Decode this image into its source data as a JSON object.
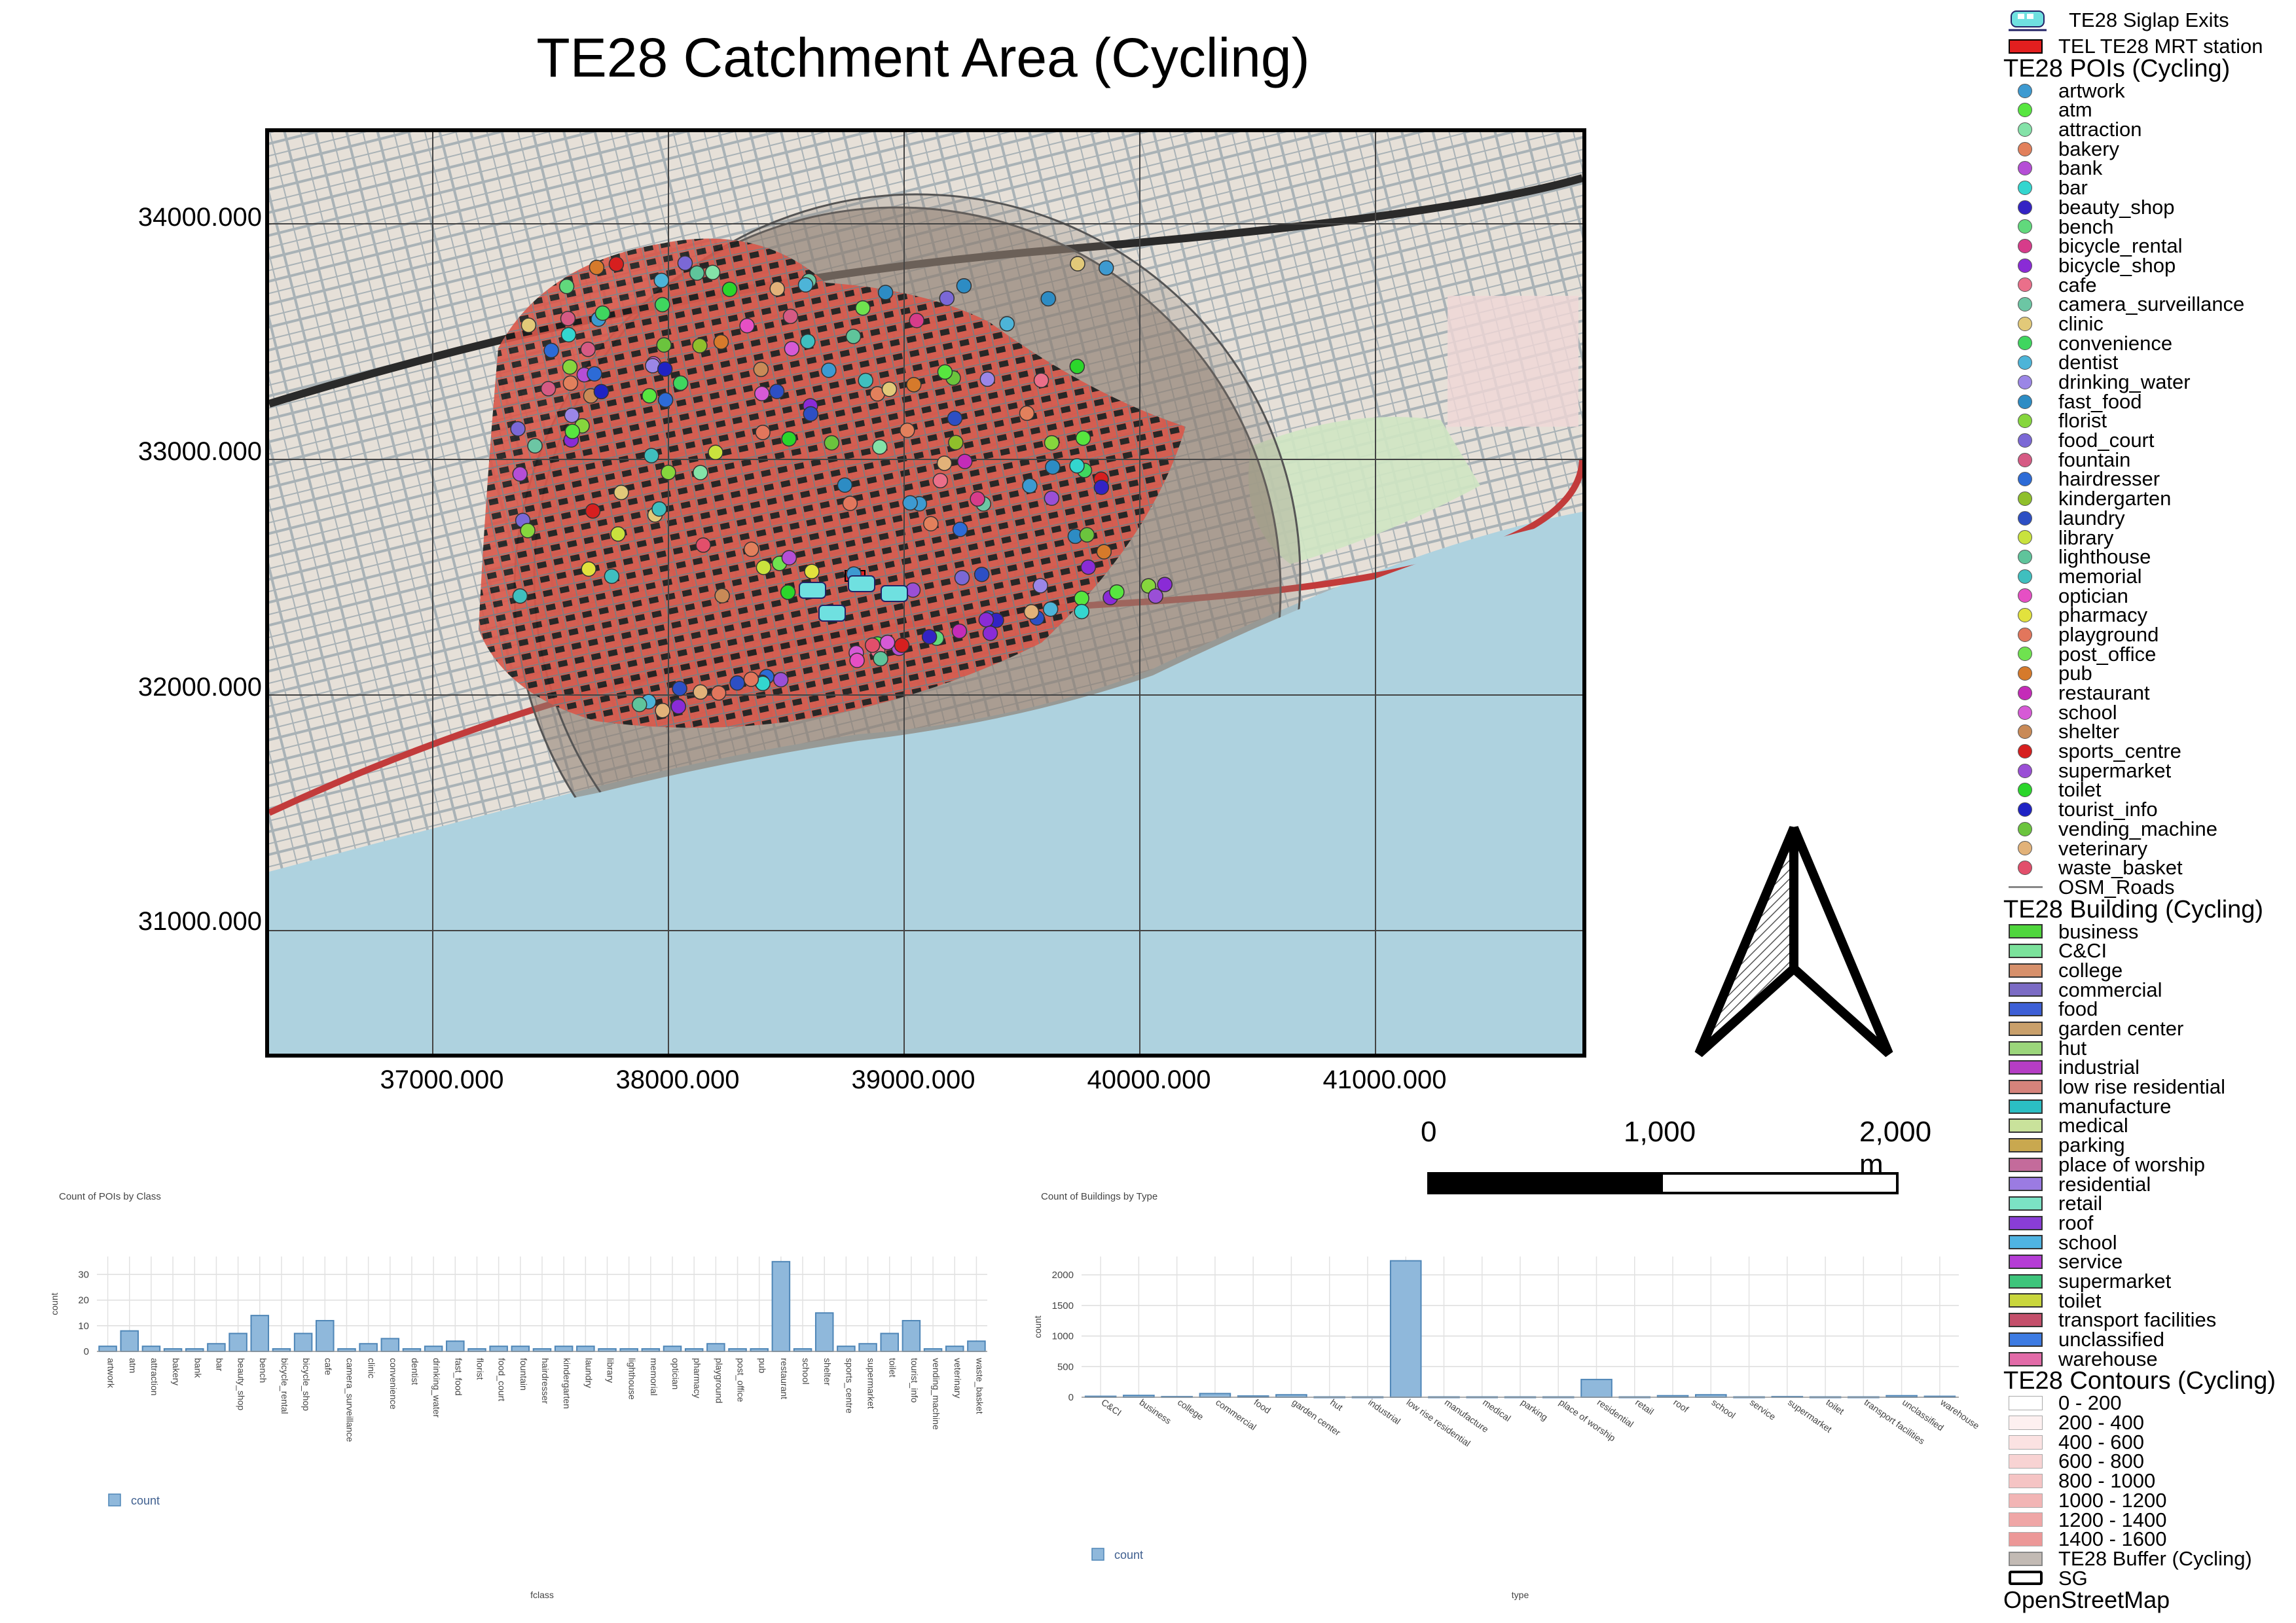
{
  "title": "TE28 Catchment Area (Cycling)",
  "map": {
    "y_ticks": [
      "34000.000",
      "33000.000",
      "32000.000",
      "31000.000"
    ],
    "x_ticks": [
      "37000.000",
      "38000.000",
      "39000.000",
      "40000.000",
      "41000.000"
    ],
    "colors": {
      "sea": "#aed2df",
      "land": "#e2dcd2",
      "roads": "#7d8a90",
      "catchment": "#d9584a",
      "buffer": "#9a8f86"
    }
  },
  "scalebar": {
    "labels": [
      "0",
      "1,000",
      "2,000 m"
    ]
  },
  "legend": {
    "exits_label": "TE28 Siglap Exits",
    "station_label": "TEL TE28 MRT station",
    "pois_title": "TE28 POIs (Cycling)",
    "pois": [
      {
        "label": "artwork",
        "color": "#3d9ad1"
      },
      {
        "label": "atm",
        "color": "#57e63f"
      },
      {
        "label": "attraction",
        "color": "#84e2a8"
      },
      {
        "label": "bakery",
        "color": "#e2805c"
      },
      {
        "label": "bank",
        "color": "#b54ed6"
      },
      {
        "label": "bar",
        "color": "#33d6cf"
      },
      {
        "label": "beauty_shop",
        "color": "#3323c4"
      },
      {
        "label": "bench",
        "color": "#61d97c"
      },
      {
        "label": "bicycle_rental",
        "color": "#d73c8a"
      },
      {
        "label": "bicycle_shop",
        "color": "#8a2bd6"
      },
      {
        "label": "cafe",
        "color": "#ea6f8a"
      },
      {
        "label": "camera_surveillance",
        "color": "#6cc6a4"
      },
      {
        "label": "clinic",
        "color": "#e2c979"
      },
      {
        "label": "convenience",
        "color": "#3fd65f"
      },
      {
        "label": "dentist",
        "color": "#4db4d8"
      },
      {
        "label": "drinking_water",
        "color": "#9b86e6"
      },
      {
        "label": "fast_food",
        "color": "#2d8cc4"
      },
      {
        "label": "florist",
        "color": "#86d63d"
      },
      {
        "label": "food_court",
        "color": "#7b68d6"
      },
      {
        "label": "fountain",
        "color": "#d65a84"
      },
      {
        "label": "hairdresser",
        "color": "#2d6bd6"
      },
      {
        "label": "kindergarten",
        "color": "#8fbf2b"
      },
      {
        "label": "laundry",
        "color": "#2d4fc4"
      },
      {
        "label": "library",
        "color": "#c9e23d"
      },
      {
        "label": "lighthouse",
        "color": "#5fc49b"
      },
      {
        "label": "memorial",
        "color": "#3fbfbf"
      },
      {
        "label": "optician",
        "color": "#e64fc4"
      },
      {
        "label": "pharmacy",
        "color": "#e2e23d"
      },
      {
        "label": "playground",
        "color": "#e2765c"
      },
      {
        "label": "post_office",
        "color": "#6fe24f"
      },
      {
        "label": "pub",
        "color": "#d67a2b"
      },
      {
        "label": "restaurant",
        "color": "#c42bb8"
      },
      {
        "label": "school",
        "color": "#d65ad6"
      },
      {
        "label": "shelter",
        "color": "#c98a57"
      },
      {
        "label": "sports_centre",
        "color": "#d61f1f"
      },
      {
        "label": "supermarket",
        "color": "#9a4fd6"
      },
      {
        "label": "toilet",
        "color": "#2bd62b"
      },
      {
        "label": "tourist_info",
        "color": "#1f23c4"
      },
      {
        "label": "vending_machine",
        "color": "#6bc43d"
      },
      {
        "label": "veterinary",
        "color": "#e2b279"
      },
      {
        "label": "waste_basket",
        "color": "#e24f6b"
      }
    ],
    "roads_label": "OSM_Roads",
    "buildings_title": "TE28 Building (Cycling)",
    "buildings": [
      {
        "label": "business",
        "color": "#4fd63d"
      },
      {
        "label": "C&CI",
        "color": "#7be29b"
      },
      {
        "label": "college",
        "color": "#d6906b"
      },
      {
        "label": "commercial",
        "color": "#7b6bc4"
      },
      {
        "label": "food",
        "color": "#3d5fd6"
      },
      {
        "label": "garden center",
        "color": "#c9a06b"
      },
      {
        "label": "hut",
        "color": "#9bd67b"
      },
      {
        "label": "industrial",
        "color": "#b53dc4"
      },
      {
        "label": "low rise residential",
        "color": "#d6837b"
      },
      {
        "label": "manufacture",
        "color": "#2bbfc4"
      },
      {
        "label": "medical",
        "color": "#c9e29b"
      },
      {
        "label": "parking",
        "color": "#c9a84f"
      },
      {
        "label": "place of worship",
        "color": "#c46b9b"
      },
      {
        "label": "residential",
        "color": "#9b7be2"
      },
      {
        "label": "retail",
        "color": "#7be2c4"
      },
      {
        "label": "roof",
        "color": "#8a3dd6"
      },
      {
        "label": "school",
        "color": "#4fb4e2"
      },
      {
        "label": "service",
        "color": "#b53dd6"
      },
      {
        "label": "supermarket",
        "color": "#3dc47b"
      },
      {
        "label": "toilet",
        "color": "#c9d63d"
      },
      {
        "label": "transport facilities",
        "color": "#c44f6b"
      },
      {
        "label": "unclassified",
        "color": "#3d7be2"
      },
      {
        "label": "warehouse",
        "color": "#e26ba8"
      }
    ],
    "contours_title": "TE28 Contours (Cycling)",
    "contours": [
      {
        "label": "0 - 200",
        "color": "#ffffff"
      },
      {
        "label": "200 - 400",
        "color": "#fdf0f0"
      },
      {
        "label": "400 - 600",
        "color": "#fbe2e2"
      },
      {
        "label": "600 - 800",
        "color": "#f8d3d3"
      },
      {
        "label": "800 - 1000",
        "color": "#f5c4c4"
      },
      {
        "label": "1000 - 1200",
        "color": "#f2b5b5"
      },
      {
        "label": "1200 - 1400",
        "color": "#efa6a6"
      },
      {
        "label": "1400 - 1600",
        "color": "#ec9898"
      }
    ],
    "buffer_label": "TE28 Buffer (Cycling)",
    "sg_label": "SG",
    "osm_label": "OpenStreetMap"
  },
  "chart_data": [
    {
      "type": "bar",
      "title": "Count of POIs by Class",
      "xlabel": "fclass",
      "ylabel": "count",
      "legend": "count",
      "ylim": [
        0,
        37
      ],
      "yticks": [
        0,
        10,
        20,
        30
      ],
      "categories": [
        "artwork",
        "atm",
        "attraction",
        "bakery",
        "bank",
        "bar",
        "beauty_shop",
        "bench",
        "bicycle_rental",
        "bicycle_shop",
        "cafe",
        "camera_surveillance",
        "clinic",
        "convenience",
        "dentist",
        "drinking_water",
        "fast_food",
        "florist",
        "food_court",
        "fountain",
        "hairdresser",
        "kindergarten",
        "laundry",
        "library",
        "lighthouse",
        "memorial",
        "optician",
        "pharmacy",
        "playground",
        "post_office",
        "pub",
        "restaurant",
        "school",
        "shelter",
        "sports_centre",
        "supermarket",
        "toilet",
        "tourist_info",
        "vending_machine",
        "veterinary",
        "waste_basket"
      ],
      "values": [
        2,
        8,
        2,
        1,
        1,
        3,
        7,
        14,
        1,
        7,
        12,
        1,
        3,
        5,
        1,
        2,
        4,
        1,
        2,
        2,
        1,
        2,
        2,
        1,
        1,
        1,
        2,
        1,
        3,
        1,
        1,
        35,
        1,
        15,
        2,
        3,
        7,
        12,
        1,
        2,
        4
      ]
    },
    {
      "type": "bar",
      "title": "Count of Buildings by Type",
      "xlabel": "type",
      "ylabel": "count",
      "legend": "count",
      "ylim": [
        0,
        2300
      ],
      "yticks": [
        0,
        500,
        1000,
        1500,
        2000
      ],
      "categories": [
        "C&CI",
        "business",
        "college",
        "commercial",
        "food",
        "garden center",
        "hut",
        "industrial",
        "low rise residential",
        "manufacture",
        "medical",
        "parking",
        "place of worship",
        "residential",
        "retail",
        "roof",
        "school",
        "service",
        "supermarket",
        "toilet",
        "transport facilities",
        "unclassified",
        "warehouse"
      ],
      "values": [
        15,
        30,
        10,
        60,
        20,
        40,
        5,
        5,
        2230,
        5,
        5,
        5,
        5,
        290,
        5,
        25,
        40,
        5,
        10,
        5,
        5,
        25,
        15
      ]
    }
  ]
}
